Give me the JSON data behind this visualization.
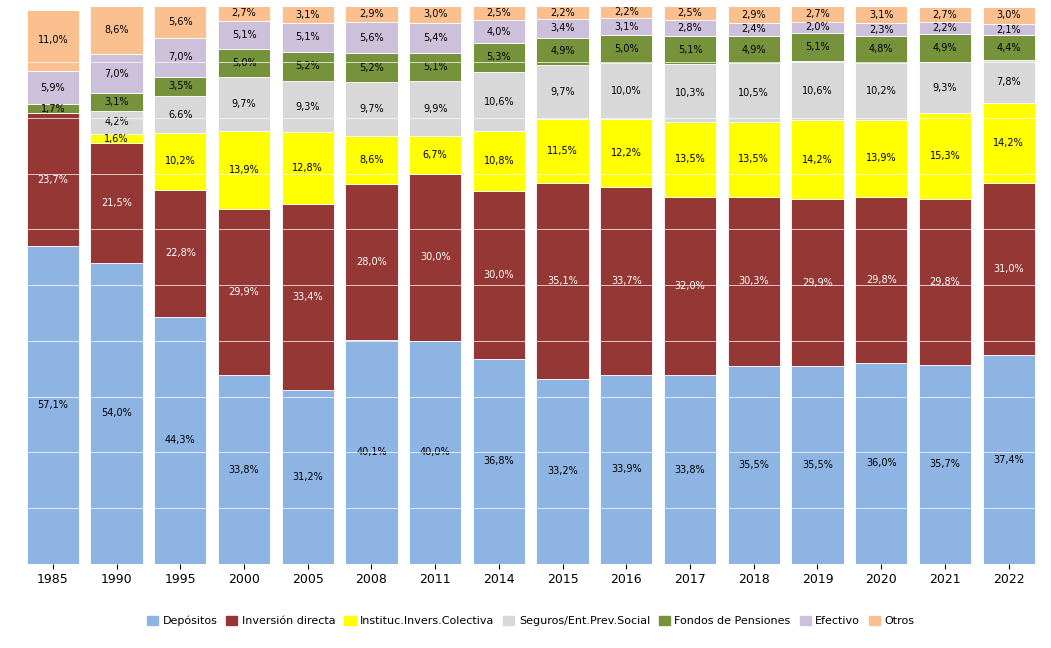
{
  "years": [
    "1985",
    "1990",
    "1995",
    "2000",
    "2005",
    "2008",
    "2011",
    "2014",
    "2015",
    "2016",
    "2017",
    "2018",
    "2019",
    "2020",
    "2021",
    "2022"
  ],
  "series": {
    "Depósitos": [
      57.1,
      54.0,
      44.3,
      33.8,
      31.2,
      40.1,
      40.0,
      36.8,
      33.2,
      33.9,
      33.8,
      35.5,
      35.5,
      36.0,
      35.7,
      37.4
    ],
    "Inversión directa": [
      23.7,
      21.5,
      22.8,
      29.9,
      33.4,
      28.0,
      30.0,
      30.0,
      35.1,
      33.7,
      32.0,
      30.3,
      29.9,
      29.8,
      29.8,
      31.0
    ],
    "Instituc.Invers.Colectiva": [
      0.0,
      1.6,
      10.2,
      13.9,
      12.8,
      8.6,
      6.7,
      10.8,
      11.5,
      12.2,
      13.5,
      13.5,
      14.2,
      13.9,
      15.3,
      14.2
    ],
    "Seguros/Ent.Prev.Social": [
      0.0,
      4.2,
      6.6,
      9.7,
      9.3,
      9.7,
      9.9,
      10.6,
      9.7,
      10.0,
      10.3,
      10.5,
      10.6,
      10.2,
      9.3,
      7.8
    ],
    "Fondos de Pensiones": [
      1.7,
      3.1,
      3.5,
      5.0,
      5.2,
      5.2,
      5.1,
      5.3,
      4.9,
      5.0,
      5.1,
      4.9,
      5.1,
      4.8,
      4.9,
      4.4
    ],
    "Efectivo": [
      5.9,
      7.0,
      7.0,
      5.1,
      5.1,
      5.6,
      5.4,
      4.0,
      3.4,
      3.1,
      2.8,
      2.4,
      2.0,
      2.3,
      2.2,
      2.1
    ],
    "Otros": [
      11.0,
      8.6,
      5.6,
      2.7,
      3.1,
      2.9,
      3.0,
      2.5,
      2.2,
      2.2,
      2.5,
      2.9,
      2.7,
      3.1,
      2.7,
      3.0
    ]
  },
  "colors": {
    "Depósitos": "#8DB4E2",
    "Inversión directa": "#953735",
    "Instituc.Invers.Colectiva": "#FFFF00",
    "Seguros/Ent.Prev.Social": "#D8D8D8",
    "Fondos de Pensiones": "#76933C",
    "Efectivo": "#CCC0DA",
    "Otros": "#FAC090"
  },
  "text_colors": {
    "Depósitos": "#000000",
    "Inversión directa": "#FFFFFF",
    "Instituc.Invers.Colectiva": "#000000",
    "Seguros/Ent.Prev.Social": "#000000",
    "Fondos de Pensiones": "#000000",
    "Efectivo": "#000000",
    "Otros": "#000000"
  },
  "background_color": "#FFFFFF",
  "bar_edge_color": "#FFFFFF",
  "figsize": [
    10.51,
    6.48
  ],
  "dpi": 100
}
